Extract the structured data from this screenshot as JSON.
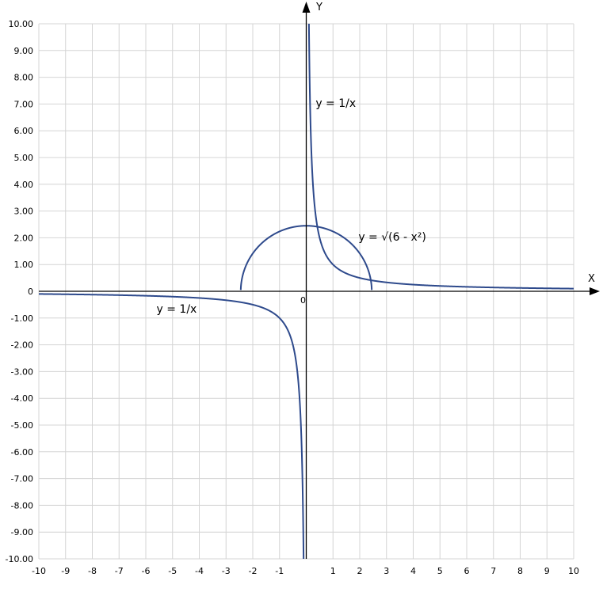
{
  "chart_data": {
    "type": "line",
    "xlabel": "X",
    "ylabel": "Y",
    "origin_label": "0",
    "xlim": [
      -10,
      10
    ],
    "ylim": [
      -10,
      10
    ],
    "grid": true,
    "x_ticks": [
      "-10",
      "-9",
      "-8",
      "-7",
      "-6",
      "-5",
      "-4",
      "-3",
      "-2",
      "-1",
      "0",
      "1",
      "2",
      "3",
      "4",
      "5",
      "6",
      "7",
      "8",
      "9",
      "10"
    ],
    "y_ticks": [
      "10.00",
      "9.00",
      "8.00",
      "7.00",
      "6.00",
      "5.00",
      "4.00",
      "3.00",
      "2.00",
      "1.00",
      "0",
      "-1.00",
      "-2.00",
      "-3.00",
      "-4.00",
      "-5.00",
      "-6.00",
      "-7.00",
      "-8.00",
      "-9.00",
      "-10.00"
    ],
    "series": [
      {
        "name": "y = 1/x",
        "function": "1/x",
        "domain": [
          0.1,
          10
        ]
      },
      {
        "name": "y = 1/x",
        "function": "1/x",
        "domain": [
          -10,
          -0.1
        ]
      },
      {
        "name": "y = √(6 - x²)",
        "function": "sqrt(6-x^2)",
        "domain": [
          -2.449,
          2.449
        ]
      }
    ],
    "annotations": [
      {
        "text": "y = 1/x",
        "x": 0.35,
        "y": 6.9
      },
      {
        "text": "y = √(6 - x²)",
        "x": 1.95,
        "y": 1.9
      },
      {
        "text": "y = 1/x",
        "x": -5.6,
        "y": -0.8
      }
    ],
    "colors": {
      "curve": "#2e4a8c",
      "grid": "#d4d4d4",
      "axis": "#000000"
    }
  }
}
